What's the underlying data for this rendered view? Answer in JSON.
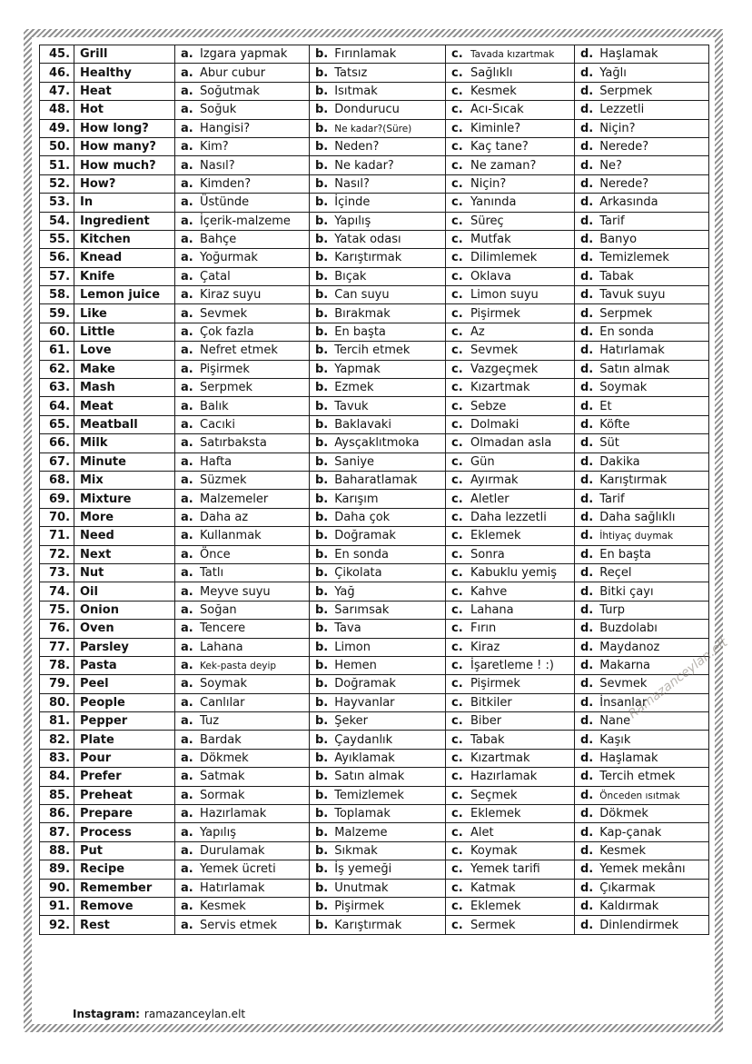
{
  "page": {
    "footer": {
      "label": "Instagram:",
      "value": "ramazanceylan.elt"
    },
    "watermark": "Ramazanceylan.elt",
    "border_color": "#8f8f8f",
    "text_color": "#141414"
  },
  "table": {
    "option_letters": [
      "a.",
      "b.",
      "c.",
      "d."
    ],
    "rows": [
      {
        "no": "45.",
        "word": "Grill",
        "a": "Izgara yapmak",
        "b": "Fırınlamak",
        "c": "Tavada kızartmak",
        "d": "Haşlamak",
        "small": "c"
      },
      {
        "no": "46.",
        "word": "Healthy",
        "a": "Abur cubur",
        "b": "Tatsız",
        "c": "Sağlıklı",
        "d": "Yağlı"
      },
      {
        "no": "47.",
        "word": "Heat",
        "a": "Soğutmak",
        "b": "Isıtmak",
        "c": "Kesmek",
        "d": "Serpmek"
      },
      {
        "no": "48.",
        "word": "Hot",
        "a": "Soğuk",
        "b": "Dondurucu",
        "c": "Acı-Sıcak",
        "d": "Lezzetli"
      },
      {
        "no": "49.",
        "word": "How long?",
        "a": "Hangisi?",
        "b": "Ne kadar?(Süre)",
        "c": "Kiminle?",
        "d": "Niçin?",
        "small": "b"
      },
      {
        "no": "50.",
        "word": "How many?",
        "a": "Kim?",
        "b": "Neden?",
        "c": "Kaç tane?",
        "d": "Nerede?"
      },
      {
        "no": "51.",
        "word": "How much?",
        "a": "Nasıl?",
        "b": "Ne kadar?",
        "c": "Ne zaman?",
        "d": "Ne?"
      },
      {
        "no": "52.",
        "word": "How?",
        "a": "Kimden?",
        "b": "Nasıl?",
        "c": "Niçin?",
        "d": "Nerede?"
      },
      {
        "no": "53.",
        "word": "In",
        "a": "Üstünde",
        "b": "İçinde",
        "c": "Yanında",
        "d": "Arkasında"
      },
      {
        "no": "54.",
        "word": "Ingredient",
        "a": "İçerik-malzeme",
        "b": "Yapılış",
        "c": "Süreç",
        "d": "Tarif"
      },
      {
        "no": "55.",
        "word": "Kitchen",
        "a": "Bahçe",
        "b": "Yatak odası",
        "c": "Mutfak",
        "d": "Banyo"
      },
      {
        "no": "56.",
        "word": "Knead",
        "a": "Yoğurmak",
        "b": "Karıştırmak",
        "c": "Dilimlemek",
        "d": "Temizlemek"
      },
      {
        "no": "57.",
        "word": "Knife",
        "a": "Çatal",
        "b": "Bıçak",
        "c": "Oklava",
        "d": "Tabak"
      },
      {
        "no": "58.",
        "word": "Lemon juice",
        "a": "Kiraz suyu",
        "b": "Can suyu",
        "c": "Limon suyu",
        "d": "Tavuk suyu"
      },
      {
        "no": "59.",
        "word": "Like",
        "a": "Sevmek",
        "b": "Bırakmak",
        "c": "Pişirmek",
        "d": "Serpmek"
      },
      {
        "no": "60.",
        "word": "Little",
        "a": "Çok fazla",
        "b": "En başta",
        "c": "Az",
        "d": "En sonda"
      },
      {
        "no": "61.",
        "word": "Love",
        "a": "Nefret etmek",
        "b": "Tercih etmek",
        "c": "Sevmek",
        "d": "Hatırlamak"
      },
      {
        "no": "62.",
        "word": "Make",
        "a": "Pişirmek",
        "b": "Yapmak",
        "c": "Vazgeçmek",
        "d": "Satın almak"
      },
      {
        "no": "63.",
        "word": "Mash",
        "a": "Serpmek",
        "b": "Ezmek",
        "c": "Kızartmak",
        "d": "Soymak"
      },
      {
        "no": "64.",
        "word": "Meat",
        "a": "Balık",
        "b": "Tavuk",
        "c": "Sebze",
        "d": "Et"
      },
      {
        "no": "65.",
        "word": "Meatball",
        "a": "Cacıki",
        "b": "Baklavaki",
        "c": "Dolmaki",
        "d": "Köfte"
      },
      {
        "no": "66.",
        "word": "Milk",
        "a": "Satırbaksta",
        "b": "Aysçaklıtmoka",
        "c": "Olmadan asla",
        "d": "Süt"
      },
      {
        "no": "67.",
        "word": "Minute",
        "a": "Hafta",
        "b": "Saniye",
        "c": "Gün",
        "d": "Dakika"
      },
      {
        "no": "68.",
        "word": "Mix",
        "a": "Süzmek",
        "b": "Baharatlamak",
        "c": "Ayırmak",
        "d": "Karıştırmak"
      },
      {
        "no": "69.",
        "word": "Mixture",
        "a": "Malzemeler",
        "b": "Karışım",
        "c": "Aletler",
        "d": "Tarif"
      },
      {
        "no": "70.",
        "word": "More",
        "a": "Daha az",
        "b": "Daha çok",
        "c": "Daha lezzetli",
        "d": "Daha sağlıklı"
      },
      {
        "no": "71.",
        "word": "Need",
        "a": "Kullanmak",
        "b": "Doğramak",
        "c": "Eklemek",
        "d": "İhtiyaç duymak",
        "small": "d"
      },
      {
        "no": "72.",
        "word": "Next",
        "a": "Önce",
        "b": "En sonda",
        "c": "Sonra",
        "d": "En başta"
      },
      {
        "no": "73.",
        "word": "Nut",
        "a": "Tatlı",
        "b": "Çikolata",
        "c": "Kabuklu yemiş",
        "d": "Reçel"
      },
      {
        "no": "74.",
        "word": "Oil",
        "a": "Meyve suyu",
        "b": "Yağ",
        "c": "Kahve",
        "d": "Bitki çayı"
      },
      {
        "no": "75.",
        "word": "Onion",
        "a": "Soğan",
        "b": "Sarımsak",
        "c": "Lahana",
        "d": "Turp"
      },
      {
        "no": "76.",
        "word": "Oven",
        "a": "Tencere",
        "b": "Tava",
        "c": "Fırın",
        "d": "Buzdolabı"
      },
      {
        "no": "77.",
        "word": "Parsley",
        "a": "Lahana",
        "b": "Limon",
        "c": "Kiraz",
        "d": "Maydanoz"
      },
      {
        "no": "78.",
        "word": "Pasta",
        "a": "Kek-pasta deyip",
        "b": "Hemen",
        "c": "İşaretleme ! :)",
        "d": "Makarna",
        "small": "a"
      },
      {
        "no": "79.",
        "word": "Peel",
        "a": "Soymak",
        "b": "Doğramak",
        "c": "Pişirmek",
        "d": "Sevmek"
      },
      {
        "no": "80.",
        "word": "People",
        "a": "Canlılar",
        "b": "Hayvanlar",
        "c": "Bitkiler",
        "d": "İnsanlar"
      },
      {
        "no": "81.",
        "word": "Pepper",
        "a": "Tuz",
        "b": "Şeker",
        "c": "Biber",
        "d": "Nane"
      },
      {
        "no": "82.",
        "word": "Plate",
        "a": "Bardak",
        "b": "Çaydanlık",
        "c": "Tabak",
        "d": "Kaşık"
      },
      {
        "no": "83.",
        "word": "Pour",
        "a": "Dökmek",
        "b": "Ayıklamak",
        "c": "Kızartmak",
        "d": "Haşlamak"
      },
      {
        "no": "84.",
        "word": "Prefer",
        "a": "Satmak",
        "b": "Satın almak",
        "c": "Hazırlamak",
        "d": "Tercih etmek"
      },
      {
        "no": "85.",
        "word": "Preheat",
        "a": "Sormak",
        "b": "Temizlemek",
        "c": "Seçmek",
        "d": "Önceden ısıtmak",
        "small": "d"
      },
      {
        "no": "86.",
        "word": "Prepare",
        "a": "Hazırlamak",
        "b": "Toplamak",
        "c": "Eklemek",
        "d": "Dökmek"
      },
      {
        "no": "87.",
        "word": "Process",
        "a": "Yapılış",
        "b": "Malzeme",
        "c": "Alet",
        "d": "Kap-çanak"
      },
      {
        "no": "88.",
        "word": "Put",
        "a": "Durulamak",
        "b": "Sıkmak",
        "c": "Koymak",
        "d": "Kesmek"
      },
      {
        "no": "89.",
        "word": "Recipe",
        "a": "Yemek ücreti",
        "b": "İş yemeği",
        "c": "Yemek tarifi",
        "d": "Yemek mekânı"
      },
      {
        "no": "90.",
        "word": "Remember",
        "a": "Hatırlamak",
        "b": "Unutmak",
        "c": "Katmak",
        "d": "Çıkarmak"
      },
      {
        "no": "91.",
        "word": "Remove",
        "a": "Kesmek",
        "b": "Pişirmek",
        "c": "Eklemek",
        "d": "Kaldırmak"
      },
      {
        "no": "92.",
        "word": "Rest",
        "a": "Servis etmek",
        "b": "Karıştırmak",
        "c": "Sermek",
        "d": "Dinlendirmek"
      }
    ]
  }
}
